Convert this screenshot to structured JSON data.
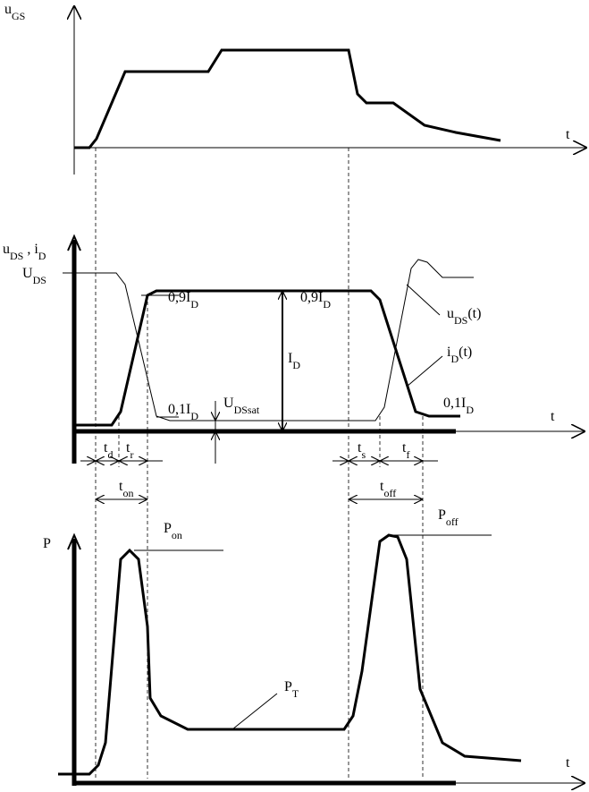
{
  "labels": [
    {
      "main": "u",
      "sub": "GS"
    },
    {
      "main": "t"
    },
    {
      "main": "u",
      "sub": "DS",
      "main2": " , i",
      "sub2": "D"
    },
    {
      "main": "U",
      "sub": "DS"
    },
    {
      "main": "0,9I",
      "sub": "D"
    },
    {
      "main": "I",
      "sub": "D"
    },
    {
      "main": "0,9I",
      "sub": "D"
    },
    {
      "main": "u",
      "sub": "DS",
      "after": "(t)"
    },
    {
      "main": "i",
      "sub": "D",
      "after": "(t)"
    },
    {
      "main": "U",
      "sub": "DSsat"
    },
    {
      "main": "0,1I",
      "sub": "D"
    },
    {
      "main": "0,1I",
      "sub": "D"
    },
    {
      "main": "t"
    },
    {
      "main": "t",
      "sub": "d"
    },
    {
      "main": "t",
      "sub": "r"
    },
    {
      "main": "t",
      "sub": "on"
    },
    {
      "main": "t",
      "sub": "s"
    },
    {
      "main": "t",
      "sub": "f"
    },
    {
      "main": "t",
      "sub": "off"
    },
    {
      "main": "P"
    },
    {
      "main": "P",
      "sub": "on"
    },
    {
      "main": "P",
      "sub": "off"
    },
    {
      "main": "P",
      "sub": "T"
    },
    {
      "main": "t"
    }
  ]
}
